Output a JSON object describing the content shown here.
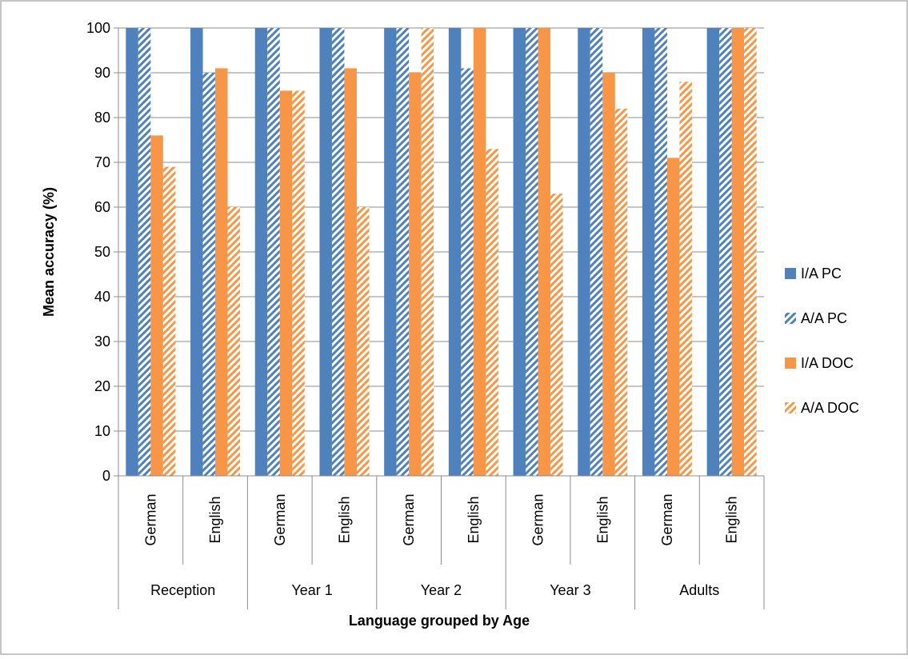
{
  "chart_data": {
    "type": "bar",
    "title": "",
    "xlabel": "Language grouped by Age",
    "ylabel": "Mean  accuracy (%)",
    "ylim": [
      0,
      100
    ],
    "yticks": [
      "0",
      "10",
      "20",
      "30",
      "40",
      "50",
      "60",
      "70",
      "80",
      "90",
      "100"
    ],
    "grid": "horizontal",
    "legend_position": "right",
    "categories": [
      "German",
      "English",
      "German",
      "English",
      "German",
      "English",
      "German",
      "English",
      "German",
      "English"
    ],
    "groups": [
      {
        "label": "Reception",
        "span": 2
      },
      {
        "label": "Year 1",
        "span": 2
      },
      {
        "label": "Year 2",
        "span": 2
      },
      {
        "label": "Year 3",
        "span": 2
      },
      {
        "label": "Adults",
        "span": 2
      }
    ],
    "series": [
      {
        "name": "I/A PC",
        "color": "#4f81bd",
        "pattern": "solid",
        "values": [
          100,
          100,
          100,
          100,
          100,
          100,
          100,
          100,
          100,
          100
        ]
      },
      {
        "name": "A/A PC",
        "color": "#4f81bd",
        "pattern": "hatched",
        "values": [
          100,
          90,
          100,
          100,
          100,
          91,
          100,
          100,
          100,
          100
        ]
      },
      {
        "name": "I/A DOC",
        "color": "#f79646",
        "pattern": "solid",
        "values": [
          76,
          91,
          86,
          91,
          90,
          100,
          100,
          90,
          71,
          100
        ]
      },
      {
        "name": "A/A DOC",
        "color": "#f79646",
        "pattern": "hatched",
        "values": [
          69,
          60,
          86,
          60,
          100,
          73,
          63,
          82,
          88,
          100
        ]
      }
    ]
  }
}
